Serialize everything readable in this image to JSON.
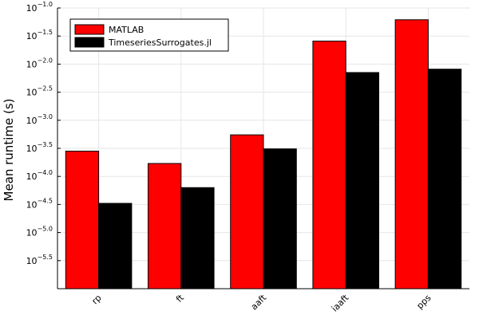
{
  "chart_data": {
    "type": "bar",
    "categories": [
      "rp",
      "ft",
      "aaft",
      "iaaft",
      "pps"
    ],
    "series": [
      {
        "name": "MATLAB",
        "color": "#ff0000",
        "log10_values": [
          -3.55,
          -3.77,
          -3.26,
          -1.59,
          -1.21
        ]
      },
      {
        "name": "TimeseriesSurrogates.jl",
        "color": "#000000",
        "log10_values": [
          -4.48,
          -4.2,
          -3.51,
          -2.15,
          -2.09
        ]
      }
    ],
    "ylabel": "Mean runtime (s)",
    "yscale": "log10",
    "ylim_log10": [
      -6.0,
      -1.0
    ],
    "yticks": [
      {
        "base": "10",
        "exp": "−1.0",
        "log10": -1.0
      },
      {
        "base": "10",
        "exp": "−1.5",
        "log10": -1.5
      },
      {
        "base": "10",
        "exp": "−2.0",
        "log10": -2.0
      },
      {
        "base": "10",
        "exp": "−2.5",
        "log10": -2.5
      },
      {
        "base": "10",
        "exp": "−3.0",
        "log10": -3.0
      },
      {
        "base": "10",
        "exp": "−3.5",
        "log10": -3.5
      },
      {
        "base": "10",
        "exp": "−4.0",
        "log10": -4.0
      },
      {
        "base": "10",
        "exp": "−4.5",
        "log10": -4.5
      },
      {
        "base": "10",
        "exp": "−5.0",
        "log10": -5.0
      },
      {
        "base": "10",
        "exp": "−5.5",
        "log10": -5.5
      }
    ],
    "grid": true,
    "legend_position": "top-left",
    "x_tick_rotation_deg": 45
  }
}
